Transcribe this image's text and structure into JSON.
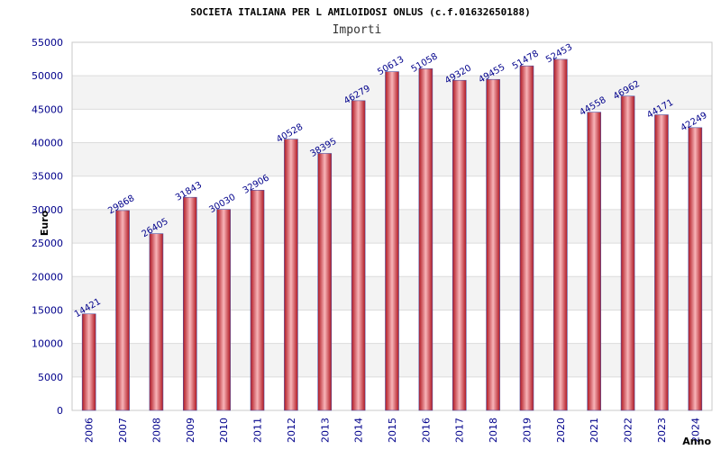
{
  "chart_data": {
    "type": "bar",
    "title": "SOCIETA ITALIANA PER L AMILOIDOSI ONLUS (c.f.01632650188)",
    "subtitle": "Importi",
    "xlabel": "Anno",
    "ylabel": "Euro",
    "categories": [
      "2006",
      "2007",
      "2008",
      "2009",
      "2010",
      "2011",
      "2012",
      "2013",
      "2014",
      "2015",
      "2016",
      "2017",
      "2018",
      "2019",
      "2020",
      "2021",
      "2022",
      "2023",
      "2024"
    ],
    "values": [
      14421,
      29868,
      26405,
      31843,
      30030,
      32906,
      40528,
      38395,
      46279,
      50613,
      51058,
      49320,
      49455,
      51478,
      52453,
      44558,
      46962,
      44171,
      42249
    ],
    "value_labels": [
      "14421",
      "29868",
      "26405",
      "31843",
      "30030",
      "32906",
      "40528",
      "38395",
      "46279",
      "50613",
      "51058",
      "49320",
      "49455",
      "51478",
      "52453",
      "44558",
      "46962",
      "44171",
      "42249"
    ],
    "yticks": [
      "0",
      "5000",
      "10000",
      "15000",
      "20000",
      "25000",
      "30000",
      "35000",
      "40000",
      "45000",
      "50000",
      "55000"
    ],
    "ylim": [
      0,
      55000
    ],
    "ytick_step": 5000,
    "grid": true,
    "bar_color": "#e8323c",
    "bar_highlight": "#f8b4b8",
    "bar_edge": "#5050a0",
    "band_color": "#f3f3f3"
  }
}
